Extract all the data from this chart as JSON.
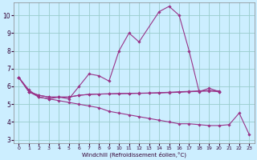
{
  "title": "",
  "xlabel": "Windchill (Refroidissement éolien,°C)",
  "bg_color": "#cceeff",
  "grid_color": "#99cccc",
  "line_color": "#993388",
  "xlim": [
    -0.5,
    23.5
  ],
  "ylim": [
    2.8,
    10.7
  ],
  "yticks": [
    3,
    4,
    5,
    6,
    7,
    8,
    9,
    10
  ],
  "xticks": [
    0,
    1,
    2,
    3,
    4,
    5,
    6,
    7,
    8,
    9,
    10,
    11,
    12,
    13,
    14,
    15,
    16,
    17,
    18,
    19,
    20,
    21,
    22,
    23
  ],
  "lines": [
    {
      "x": [
        0,
        1,
        2,
        3,
        4,
        5,
        6,
        7,
        8,
        9,
        10,
        11,
        12,
        14,
        15,
        16,
        17,
        18,
        19,
        20
      ],
      "y": [
        6.5,
        5.8,
        5.4,
        5.3,
        5.4,
        5.3,
        6.0,
        6.7,
        6.6,
        6.3,
        8.0,
        9.0,
        8.5,
        10.2,
        10.5,
        10.0,
        8.0,
        5.7,
        5.9,
        5.7
      ]
    },
    {
      "x": [
        0,
        1,
        2,
        3,
        4,
        5,
        6,
        7,
        8,
        9,
        10,
        11,
        12,
        13,
        14,
        15,
        16,
        17,
        18,
        19,
        20
      ],
      "y": [
        6.5,
        5.7,
        5.5,
        5.4,
        5.4,
        5.4,
        5.5,
        5.55,
        5.57,
        5.58,
        5.59,
        5.6,
        5.61,
        5.62,
        5.63,
        5.65,
        5.67,
        5.7,
        5.72,
        5.74,
        5.7
      ]
    },
    {
      "x": [
        0,
        1,
        2,
        3,
        4,
        5,
        6,
        7,
        8,
        9,
        10,
        11,
        12,
        13,
        14,
        15,
        16,
        17,
        18,
        19,
        20
      ],
      "y": [
        6.5,
        5.7,
        5.5,
        5.4,
        5.4,
        5.4,
        5.5,
        5.55,
        5.57,
        5.58,
        5.6,
        5.61,
        5.62,
        5.63,
        5.65,
        5.67,
        5.7,
        5.72,
        5.75,
        5.77,
        5.75
      ]
    },
    {
      "x": [
        0,
        1,
        2,
        3,
        4,
        5,
        6,
        7,
        8,
        9,
        10,
        11,
        12,
        13,
        14,
        15,
        16,
        17,
        18,
        19,
        20,
        21,
        22,
        23
      ],
      "y": [
        6.5,
        5.7,
        5.4,
        5.3,
        5.2,
        5.1,
        5.0,
        4.9,
        4.8,
        4.6,
        4.5,
        4.4,
        4.3,
        4.2,
        4.1,
        4.0,
        3.9,
        3.9,
        3.85,
        3.8,
        3.8,
        3.85,
        4.5,
        3.3
      ]
    }
  ]
}
